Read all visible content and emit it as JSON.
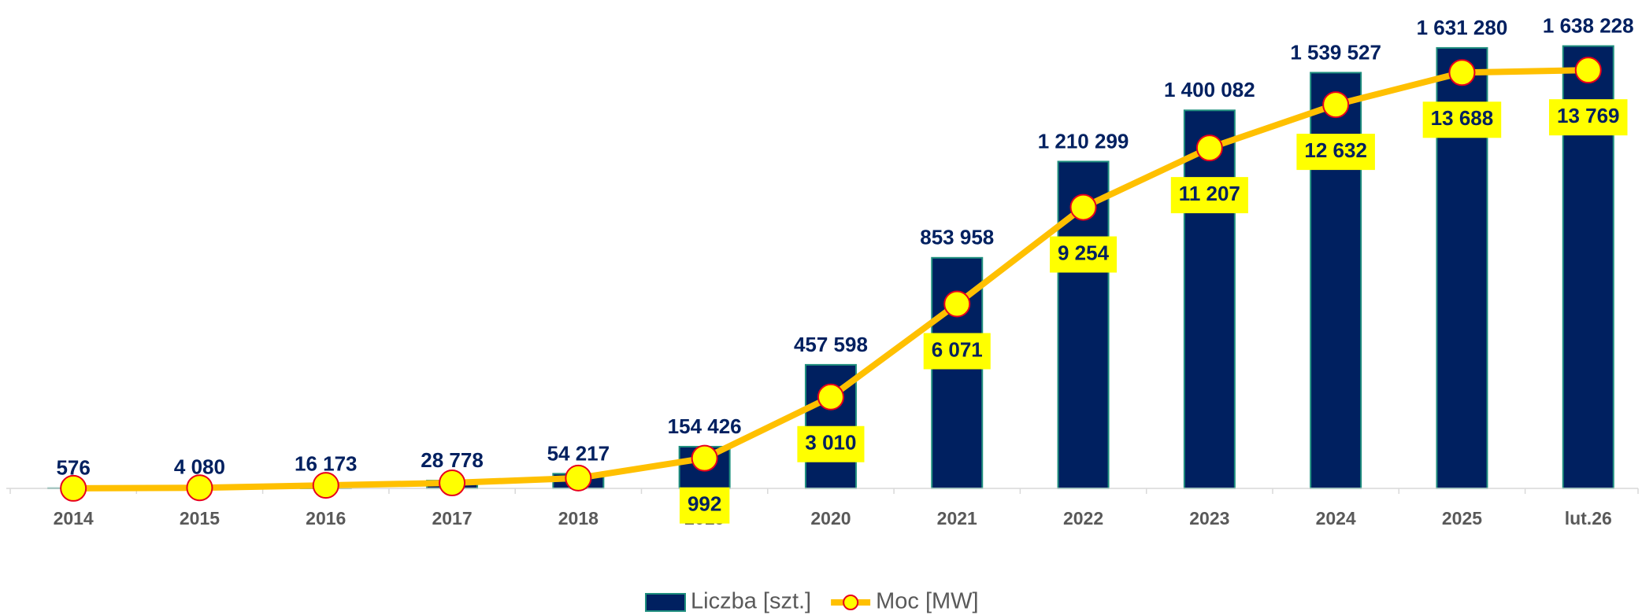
{
  "chart_data": {
    "type": "bar",
    "categories": [
      "2014",
      "2015",
      "2016",
      "2017",
      "2018",
      "2019",
      "2020",
      "2021",
      "2022",
      "2023",
      "2024",
      "2025",
      "lut.26"
    ],
    "series": [
      {
        "name": "Liczba [szt.]",
        "type": "bar",
        "color": "#002060",
        "border_color": "#1f8f7e",
        "values": [
          576,
          4080,
          16173,
          28778,
          54217,
          154426,
          457598,
          853958,
          1210299,
          1400082,
          1539527,
          1631280,
          1638228
        ],
        "value_labels": [
          "576",
          "4 080",
          "16 173",
          "28 778",
          "54 217",
          "154 426",
          "457 598",
          "853 958",
          "1 210 299",
          "1 400 082",
          "1 539 527",
          "1 631 280",
          "1 638 228"
        ]
      },
      {
        "name": "Moc [MW]",
        "type": "line",
        "axis": "y2",
        "color": "#ffc000",
        "marker_color": "#ffff00",
        "marker_border": "#e8001c",
        "values": [
          2,
          20,
          100,
          180,
          340,
          992,
          3010,
          6071,
          9254,
          11207,
          12632,
          13688,
          13769
        ],
        "value_labels": [
          null,
          null,
          null,
          null,
          null,
          "992",
          "3 010",
          "6 071",
          "9 254",
          "11 207",
          "12 632",
          "13 688",
          "13 769"
        ]
      }
    ],
    "ylim": [
      0,
      1800000
    ],
    "y2lim": [
      0,
      16000
    ],
    "legend": "bottom"
  }
}
